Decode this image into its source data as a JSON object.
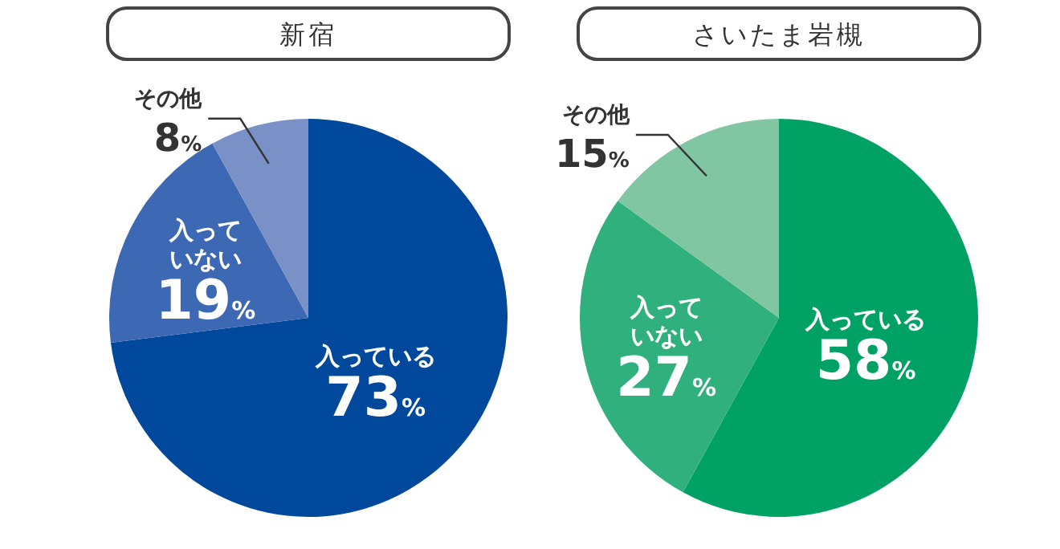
{
  "chart_data": [
    {
      "type": "pie",
      "title": "新宿",
      "categories": [
        "入っている",
        "入っていない",
        "その他"
      ],
      "values": [
        73,
        19,
        8
      ],
      "value_labels": [
        "73%",
        "19%",
        "8%"
      ],
      "colors": [
        "#00489c",
        "#3d68b3",
        "#7a91c7"
      ]
    },
    {
      "type": "pie",
      "title": "さいたま岩槻",
      "categories": [
        "入っている",
        "入っていない",
        "その他"
      ],
      "values": [
        58,
        27,
        15
      ],
      "value_labels": [
        "58%",
        "27%",
        "15%"
      ],
      "colors": [
        "#00a165",
        "#2fb07d",
        "#80c6a2"
      ]
    }
  ]
}
